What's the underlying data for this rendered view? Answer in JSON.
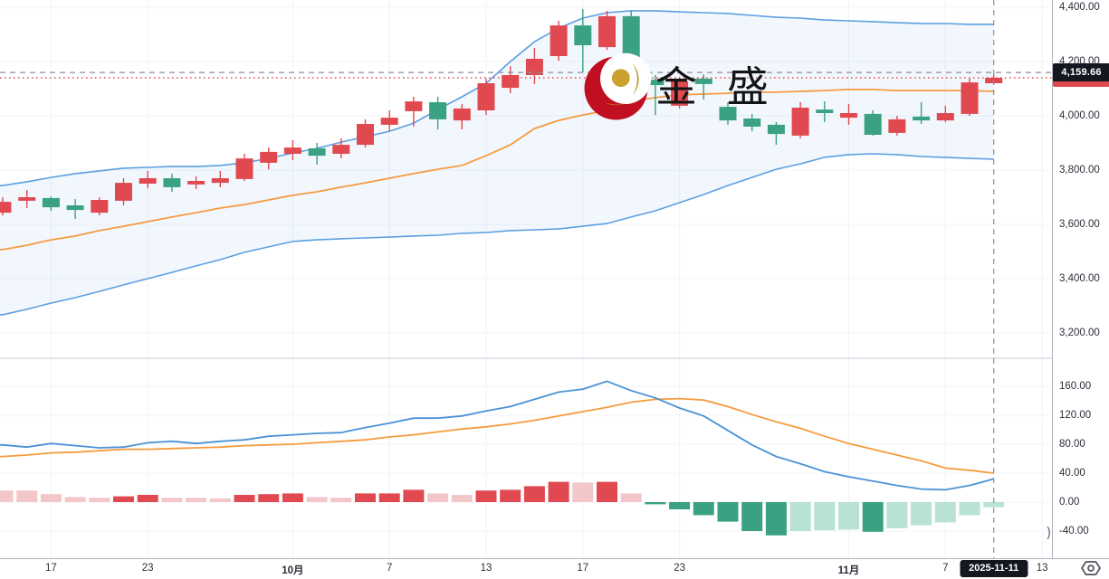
{
  "watermark": {
    "text": "金 盛"
  },
  "crosshair": {
    "price_label": "4,159.66",
    "date_label": "2025-11-11",
    "price": 4159.66,
    "candle_index": 41
  },
  "last_price": {
    "value": 4140
  },
  "price_axis": {
    "labels": [
      "4,400.00",
      "4,200.00",
      "4,000.00",
      "3,800.00",
      "3,600.00",
      "3,400.00",
      "3,200.00"
    ],
    "values": [
      4400,
      4200,
      4000,
      3800,
      3600,
      3400,
      3200
    ]
  },
  "macd_axis": {
    "labels": [
      "160.00",
      "120.00",
      "80.00",
      "40.00",
      "0.00",
      "-40.00"
    ],
    "values": [
      160,
      120,
      80,
      40,
      0,
      -40
    ]
  },
  "time_axis": {
    "labels": [
      {
        "text": "17",
        "index": 2,
        "bold": false
      },
      {
        "text": "23",
        "index": 6,
        "bold": false
      },
      {
        "text": "10月",
        "index": 12,
        "bold": true
      },
      {
        "text": "7",
        "index": 16,
        "bold": false
      },
      {
        "text": "13",
        "index": 20,
        "bold": false
      },
      {
        "text": "17",
        "index": 24,
        "bold": false
      },
      {
        "text": "23",
        "index": 28,
        "bold": false
      },
      {
        "text": "11月",
        "index": 35,
        "bold": true
      },
      {
        "text": "7",
        "index": 39,
        "bold": false
      },
      {
        "text": "13",
        "index": 43,
        "bold": false
      }
    ],
    "clipped_mark": ")"
  },
  "icons": {
    "bottom_right": "hexagon-eye-icon"
  },
  "colors": {
    "up": "#e0494f",
    "down": "#3aa183",
    "hist_up_strong": "#e0494f",
    "hist_up_light": "#f3c6c9",
    "hist_down_strong": "#3aa183",
    "hist_down_light": "#b7e2d4",
    "bollinger_band": "#5b9fe0",
    "bollinger_mid": "#f59b3e",
    "macd_line": "#4a92d6",
    "signal_line": "#f59b3e",
    "band_fill": "rgba(91,159,224,0.08)",
    "badge_bg": "#14171f",
    "crosshair": "#8b8f9b",
    "logo_red": "#c00f20",
    "logo_gold": "#c8a22c"
  },
  "chart_data": {
    "type": "candlestick",
    "convention": "red = up, green = down",
    "panes": [
      {
        "name": "price",
        "y_range": [
          3170,
          4420
        ],
        "series": [
          {
            "name": "candles-ohlc",
            "type": "candlestick",
            "ohlc": [
              [
                3643,
                3700,
                3633,
                3683
              ],
              [
                3687,
                3727,
                3660,
                3700
              ],
              [
                3697,
                3703,
                3650,
                3663
              ],
              [
                3670,
                3693,
                3620,
                3653
              ],
              [
                3643,
                3700,
                3633,
                3690
              ],
              [
                3687,
                3770,
                3670,
                3753
              ],
              [
                3750,
                3797,
                3733,
                3770
              ],
              [
                3770,
                3787,
                3720,
                3737
              ],
              [
                3747,
                3777,
                3730,
                3760
              ],
              [
                3753,
                3797,
                3737,
                3770
              ],
              [
                3767,
                3860,
                3760,
                3843
              ],
              [
                3827,
                3883,
                3803,
                3867
              ],
              [
                3860,
                3910,
                3837,
                3883
              ],
              [
                3880,
                3900,
                3820,
                3853
              ],
              [
                3860,
                3917,
                3843,
                3893
              ],
              [
                3893,
                3987,
                3883,
                3970
              ],
              [
                3967,
                4020,
                3943,
                3993
              ],
              [
                4017,
                4070,
                3960,
                4053
              ],
              [
                4050,
                4070,
                3950,
                3987
              ],
              [
                3983,
                4043,
                3950,
                4027
              ],
              [
                4020,
                4137,
                4003,
                4120
              ],
              [
                4103,
                4183,
                4083,
                4150
              ],
              [
                4150,
                4250,
                4117,
                4210
              ],
              [
                4220,
                4350,
                4203,
                4333
              ],
              [
                4333,
                4393,
                4160,
                4260
              ],
              [
                4253,
                4387,
                4243,
                4367
              ],
              [
                4367,
                4387,
                4127,
                4133
              ],
              [
                4133,
                4150,
                4003,
                4113
              ],
              [
                4037,
                4143,
                4027,
                4127
              ],
              [
                4137,
                4153,
                4060,
                4117
              ],
              [
                4033,
                4050,
                3967,
                3983
              ],
              [
                3990,
                4007,
                3943,
                3960
              ],
              [
                3967,
                3977,
                3893,
                3933
              ],
              [
                3927,
                4050,
                3917,
                4030
              ],
              [
                4023,
                4053,
                3977,
                4010
              ],
              [
                3993,
                4043,
                3967,
                4010
              ],
              [
                4007,
                4020,
                3927,
                3930
              ],
              [
                3937,
                4000,
                3927,
                3987
              ],
              [
                3997,
                4050,
                3970,
                3983
              ],
              [
                3983,
                4037,
                3977,
                4010
              ],
              [
                4007,
                4137,
                4000,
                4123
              ],
              [
                4120,
                4150,
                4115,
                4140
              ]
            ]
          },
          {
            "name": "bollinger-upper",
            "type": "line",
            "values": [
              3743,
              3757,
              3773,
              3787,
              3797,
              3807,
              3810,
              3813,
              3813,
              3817,
              3827,
              3843,
              3863,
              3880,
              3903,
              3923,
              3943,
              3973,
              4023,
              4070,
              4120,
              4200,
              4273,
              4323,
              4360,
              4380,
              4387,
              4387,
              4383,
              4380,
              4377,
              4370,
              4363,
              4360,
              4353,
              4350,
              4347,
              4343,
              4340,
              4340,
              4337,
              4337
            ]
          },
          {
            "name": "bollinger-middle",
            "type": "line",
            "values": [
              3507,
              3523,
              3543,
              3557,
              3577,
              3593,
              3610,
              3627,
              3643,
              3660,
              3673,
              3690,
              3707,
              3720,
              3737,
              3753,
              3770,
              3787,
              3803,
              3817,
              3853,
              3893,
              3953,
              3983,
              4003,
              4020,
              4053,
              4067,
              4077,
              4080,
              4083,
              4087,
              4087,
              4090,
              4093,
              4097,
              4097,
              4093,
              4093,
              4093,
              4093,
              4090
            ]
          },
          {
            "name": "bollinger-lower",
            "type": "line",
            "values": [
              3267,
              3287,
              3310,
              3330,
              3353,
              3377,
              3400,
              3423,
              3447,
              3470,
              3497,
              3517,
              3537,
              3543,
              3547,
              3550,
              3553,
              3557,
              3560,
              3567,
              3570,
              3577,
              3580,
              3583,
              3593,
              3603,
              3627,
              3650,
              3680,
              3710,
              3743,
              3773,
              3803,
              3823,
              3847,
              3857,
              3860,
              3857,
              3850,
              3847,
              3843,
              3840
            ]
          }
        ]
      },
      {
        "name": "macd",
        "y_range": [
          -60,
          190
        ],
        "series": [
          {
            "name": "macd-line",
            "type": "line",
            "values": [
              79,
              76,
              81,
              78,
              75,
              76,
              82,
              84,
              81,
              84,
              86,
              91,
              93,
              95,
              96,
              103,
              109,
              116,
              116,
              119,
              126,
              132,
              142,
              152,
              156,
              167,
              154,
              144,
              130,
              119,
              99,
              79,
              63,
              53,
              42,
              35,
              29,
              23,
              18,
              17,
              23,
              32
            ]
          },
          {
            "name": "signal-line",
            "type": "line",
            "values": [
              63,
              65,
              68,
              69,
              71,
              73,
              73,
              74,
              75,
              76,
              78,
              79,
              80,
              82,
              84,
              86,
              90,
              93,
              97,
              101,
              104,
              108,
              113,
              119,
              125,
              131,
              138,
              142,
              143,
              141,
              132,
              121,
              111,
              102,
              91,
              81,
              73,
              65,
              57,
              47,
              44,
              40
            ]
          },
          {
            "name": "histogram",
            "type": "bar",
            "values": [
              16,
              16,
              11,
              7,
              6,
              8,
              10,
              6,
              6,
              5,
              10,
              11,
              12,
              7,
              6,
              12,
              12,
              17,
              12,
              10,
              16,
              17,
              22,
              28,
              27,
              28,
              12,
              -3,
              -10,
              -18,
              -27,
              -40,
              -46,
              -40,
              -39,
              -38,
              -41,
              -36,
              -32,
              -28,
              -18,
              -7
            ],
            "styles": [
              "light",
              "light",
              "light",
              "light",
              "light",
              "strong",
              "strong",
              "light",
              "light",
              "light",
              "strong",
              "strong",
              "strong",
              "light",
              "light",
              "strong",
              "strong",
              "strong",
              "light",
              "light",
              "strong",
              "strong",
              "strong",
              "strong",
              "light",
              "strong",
              "light",
              "strong",
              "strong",
              "strong",
              "strong",
              "strong",
              "strong",
              "light",
              "light",
              "light",
              "strong",
              "light",
              "light",
              "light",
              "light",
              "light"
            ]
          }
        ]
      }
    ]
  }
}
